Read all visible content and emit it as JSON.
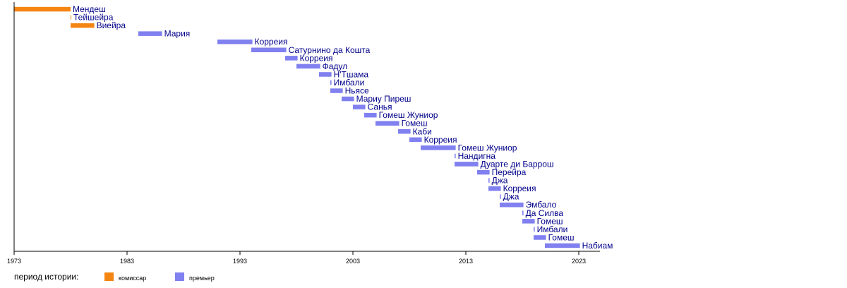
{
  "chart_data": {
    "type": "timeline",
    "x_range": [
      1973,
      2025
    ],
    "ticks": [
      "1973",
      "1983",
      "1993",
      "2003",
      "2013",
      "2023"
    ],
    "tick_years": [
      1973,
      1983,
      1993,
      2003,
      2013,
      2023
    ],
    "legend_title": "период истории:",
    "categories": [
      {
        "key": "commissar",
        "label": "комиссар",
        "color": "#f58513"
      },
      {
        "key": "premier",
        "label": "премьер",
        "color": "#8080f0"
      }
    ],
    "bars": [
      {
        "name": "Мендеш",
        "start": 1973.0,
        "end": 1978.0,
        "cat": "commissar"
      },
      {
        "name": "Тейшейра",
        "start": 1978.0,
        "end": 1978.05,
        "cat": "commissar"
      },
      {
        "name": "Виейра",
        "start": 1978.0,
        "end": 1980.1,
        "cat": "commissar"
      },
      {
        "name": "Мария",
        "start": 1984.0,
        "end": 1986.1,
        "cat": "premier"
      },
      {
        "name": "Корреия",
        "start": 1991.0,
        "end": 1994.1,
        "cat": "premier"
      },
      {
        "name": "Сатурнино да Кошта",
        "start": 1994.0,
        "end": 1997.1,
        "cat": "premier"
      },
      {
        "name": "Корреия",
        "start": 1997.0,
        "end": 1998.1,
        "cat": "premier"
      },
      {
        "name": "Фадул",
        "start": 1998.0,
        "end": 2000.1,
        "cat": "premier"
      },
      {
        "name": "Н'Тшама",
        "start": 2000.0,
        "end": 2001.1,
        "cat": "premier"
      },
      {
        "name": "Имбали",
        "start": 2001.0,
        "end": 2001.1,
        "cat": "premier"
      },
      {
        "name": "Ньясе",
        "start": 2001.0,
        "end": 2002.1,
        "cat": "premier"
      },
      {
        "name": "Мариу Пиреш",
        "start": 2002.0,
        "end": 2003.1,
        "cat": "premier"
      },
      {
        "name": "Санья",
        "start": 2003.0,
        "end": 2004.1,
        "cat": "premier"
      },
      {
        "name": "Гомеш Жуниор",
        "start": 2004.0,
        "end": 2005.1,
        "cat": "premier"
      },
      {
        "name": "Гомеш",
        "start": 2005.0,
        "end": 2007.1,
        "cat": "premier"
      },
      {
        "name": "Каби",
        "start": 2007.0,
        "end": 2008.1,
        "cat": "premier"
      },
      {
        "name": "Корреия",
        "start": 2008.0,
        "end": 2009.1,
        "cat": "premier"
      },
      {
        "name": "Гомеш Жуниор",
        "start": 2009.0,
        "end": 2012.1,
        "cat": "premier"
      },
      {
        "name": "Нандигна",
        "start": 2012.0,
        "end": 2012.1,
        "cat": "premier"
      },
      {
        "name": "Дуарте ди Баррош",
        "start": 2012.0,
        "end": 2014.1,
        "cat": "premier"
      },
      {
        "name": "Перейра",
        "start": 2014.0,
        "end": 2015.1,
        "cat": "premier"
      },
      {
        "name": "Джа",
        "start": 2015.0,
        "end": 2015.1,
        "cat": "premier"
      },
      {
        "name": "Корреия",
        "start": 2015.0,
        "end": 2016.1,
        "cat": "premier"
      },
      {
        "name": "Джа",
        "start": 2016.0,
        "end": 2016.1,
        "cat": "premier"
      },
      {
        "name": "Эмбало",
        "start": 2016.0,
        "end": 2018.1,
        "cat": "premier"
      },
      {
        "name": "Да Силва",
        "start": 2018.0,
        "end": 2018.1,
        "cat": "premier"
      },
      {
        "name": "Гомеш",
        "start": 2018.0,
        "end": 2019.1,
        "cat": "premier"
      },
      {
        "name": "Имбали",
        "start": 2019.0,
        "end": 2019.1,
        "cat": "premier"
      },
      {
        "name": "Гомеш",
        "start": 2019.0,
        "end": 2020.1,
        "cat": "premier"
      },
      {
        "name": "Набиам",
        "start": 2020.0,
        "end": 2023.1,
        "cat": "premier"
      }
    ]
  }
}
